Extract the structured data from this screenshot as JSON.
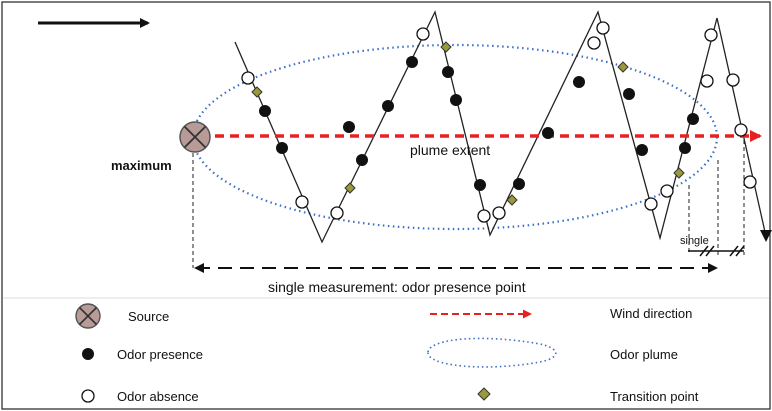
{
  "diagram": {
    "labels": {
      "maximum": "maximum",
      "plume_extent": "plume extent",
      "single": "single",
      "measurement": "single measurement: odor presence point"
    },
    "legend": [
      {
        "key": "source",
        "label": "Source"
      },
      {
        "key": "wind",
        "label": "Wind direction"
      },
      {
        "key": "presence",
        "label": "Odor presence"
      },
      {
        "key": "plume",
        "label": "Odor plume"
      },
      {
        "key": "absence",
        "label": "Odor absence"
      },
      {
        "key": "transition",
        "label": "Transition point"
      }
    ],
    "colors": {
      "wind_arrow": "#e82020",
      "plume_outline": "#3a6fc9",
      "source_fill": "#b89a96",
      "transition_fill": "#9a9a3a",
      "frame": "#222222"
    },
    "icons": {
      "source": "crossed-circle-icon",
      "presence": "filled-dot-icon",
      "absence": "hollow-dot-icon",
      "transition": "diamond-icon"
    }
  }
}
